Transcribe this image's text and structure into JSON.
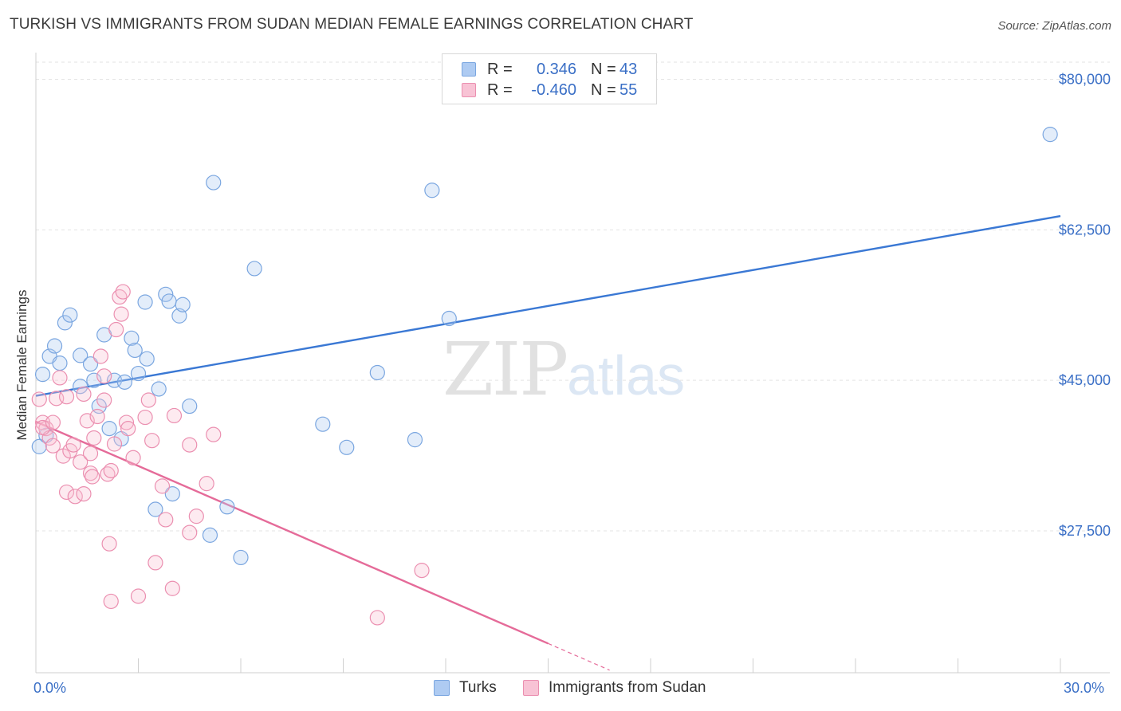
{
  "title": "TURKISH VS IMMIGRANTS FROM SUDAN MEDIAN FEMALE EARNINGS CORRELATION CHART",
  "source": "Source: ZipAtlas.com",
  "watermark": {
    "zip": "ZIP",
    "atlas": "atlas"
  },
  "legend": {
    "rows": [
      {
        "r_label": "R =",
        "r_value": "0.346",
        "n_label": "N =",
        "n_value": "43",
        "color": "#aecbf2",
        "border": "#7aa6e0"
      },
      {
        "r_label": "R =",
        "r_value": "-0.460",
        "n_label": "N =",
        "n_value": "55",
        "color": "#f8c3d5",
        "border": "#eb8fb0"
      }
    ]
  },
  "bottom_legend": [
    {
      "label": "Turks",
      "color": "#aecbf2",
      "border": "#7aa6e0"
    },
    {
      "label": "Immigrants from Sudan",
      "color": "#f8c3d5",
      "border": "#eb8fb0"
    }
  ],
  "colors": {
    "blue": "#3a78d4",
    "pink": "#e56b99",
    "axis_text": "#3a6fc6",
    "grid": "#e3e3e3"
  },
  "chart_data": {
    "type": "scatter",
    "title": "TURKISH VS IMMIGRANTS FROM SUDAN MEDIAN FEMALE EARNINGS CORRELATION CHART",
    "xlabel": "",
    "ylabel": "Median Female Earnings",
    "xlim": [
      0,
      30
    ],
    "ylim": [
      11000,
      82000
    ],
    "x_tick_labels": [
      "0.0%",
      "30.0%"
    ],
    "y_ticks": [
      27500,
      45000,
      62500,
      80000
    ],
    "y_tick_labels": [
      "$27,500",
      "$45,000",
      "$62,500",
      "$80,000"
    ],
    "grid": true,
    "series": [
      {
        "name": "Turks",
        "points": [
          [
            0.2,
            45700
          ],
          [
            0.4,
            47800
          ],
          [
            0.55,
            49000
          ],
          [
            0.7,
            47000
          ],
          [
            0.85,
            51700
          ],
          [
            1.0,
            52600
          ],
          [
            1.3,
            47900
          ],
          [
            1.3,
            44300
          ],
          [
            1.6,
            46900
          ],
          [
            1.7,
            45000
          ],
          [
            1.85,
            42000
          ],
          [
            2.0,
            50300
          ],
          [
            2.15,
            39400
          ],
          [
            2.3,
            45000
          ],
          [
            2.5,
            38200
          ],
          [
            2.6,
            44800
          ],
          [
            2.8,
            49900
          ],
          [
            2.9,
            48500
          ],
          [
            3.0,
            45800
          ],
          [
            3.2,
            54100
          ],
          [
            3.25,
            47500
          ],
          [
            3.6,
            44000
          ],
          [
            3.8,
            55000
          ],
          [
            3.9,
            54200
          ],
          [
            4.2,
            52500
          ],
          [
            4.3,
            53800
          ],
          [
            4.5,
            42000
          ],
          [
            3.5,
            30000
          ],
          [
            4.0,
            31800
          ],
          [
            5.1,
            27000
          ],
          [
            5.2,
            68000
          ],
          [
            5.6,
            30300
          ],
          [
            6.0,
            24400
          ],
          [
            6.4,
            58000
          ],
          [
            8.4,
            39900
          ],
          [
            9.1,
            37200
          ],
          [
            10.0,
            45900
          ],
          [
            11.1,
            38100
          ],
          [
            11.6,
            67100
          ],
          [
            12.1,
            52200
          ],
          [
            29.7,
            73600
          ],
          [
            0.1,
            37300
          ],
          [
            0.3,
            38600
          ]
        ],
        "trend": {
          "x": [
            0,
            30
          ],
          "y": [
            43200,
            64100
          ]
        }
      },
      {
        "name": "Immigrants from Sudan",
        "points": [
          [
            0.1,
            42800
          ],
          [
            0.2,
            40100
          ],
          [
            0.3,
            39400
          ],
          [
            0.4,
            38300
          ],
          [
            0.5,
            37400
          ],
          [
            0.6,
            42900
          ],
          [
            0.7,
            45300
          ],
          [
            0.8,
            36200
          ],
          [
            0.9,
            43100
          ],
          [
            0.9,
            32000
          ],
          [
            1.0,
            36800
          ],
          [
            1.1,
            37500
          ],
          [
            1.15,
            31500
          ],
          [
            1.3,
            35500
          ],
          [
            1.4,
            31800
          ],
          [
            1.4,
            43400
          ],
          [
            1.5,
            40300
          ],
          [
            1.6,
            34200
          ],
          [
            1.6,
            36500
          ],
          [
            1.7,
            38300
          ],
          [
            1.8,
            40800
          ],
          [
            1.9,
            47800
          ],
          [
            2.0,
            42700
          ],
          [
            2.0,
            45500
          ],
          [
            2.1,
            34100
          ],
          [
            2.15,
            26000
          ],
          [
            2.2,
            34500
          ],
          [
            2.3,
            37600
          ],
          [
            2.35,
            50900
          ],
          [
            2.45,
            54700
          ],
          [
            2.5,
            52700
          ],
          [
            2.55,
            55300
          ],
          [
            2.65,
            40100
          ],
          [
            2.7,
            39400
          ],
          [
            2.85,
            36000
          ],
          [
            3.0,
            19900
          ],
          [
            3.2,
            40700
          ],
          [
            3.3,
            42700
          ],
          [
            3.4,
            38000
          ],
          [
            3.5,
            23800
          ],
          [
            3.7,
            32700
          ],
          [
            3.8,
            28800
          ],
          [
            4.0,
            20800
          ],
          [
            4.05,
            40900
          ],
          [
            4.5,
            37500
          ],
          [
            4.5,
            27300
          ],
          [
            4.7,
            29200
          ],
          [
            5.0,
            33000
          ],
          [
            5.2,
            38700
          ],
          [
            2.2,
            19300
          ],
          [
            1.65,
            33800
          ],
          [
            10.0,
            17400
          ],
          [
            11.3,
            22900
          ],
          [
            0.2,
            39500
          ],
          [
            0.5,
            40100
          ]
        ],
        "trend": {
          "x": [
            0,
            15
          ],
          "y": [
            40200,
            14400
          ]
        },
        "trend_dashed": {
          "x": [
            15,
            16.8
          ],
          "y": [
            14400,
            11300
          ]
        }
      }
    ]
  }
}
